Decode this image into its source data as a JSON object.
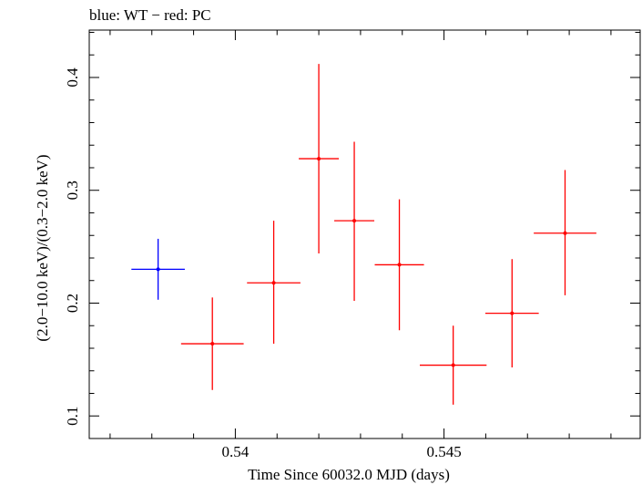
{
  "chart_data": {
    "type": "scatter",
    "title": "blue: WT − red: PC",
    "xlabel": "Time Since 60032.0 MJD (days)",
    "ylabel": "(2.0−10.0 keV)/(0.3−2.0 keV)",
    "xlim": [
      0.5365,
      0.5497
    ],
    "ylim": [
      0.08,
      0.442
    ],
    "x_ticks": [
      0.54,
      0.545
    ],
    "x_tick_labels": [
      "0.54",
      "0.545"
    ],
    "y_ticks": [
      0.1,
      0.2,
      0.3,
      0.4
    ],
    "y_tick_labels": [
      "0.1",
      "0.2",
      "0.3",
      "0.4"
    ],
    "grid": false,
    "series": [
      {
        "name": "WT",
        "color": "#0000ff",
        "points": [
          {
            "x": 0.53815,
            "y": 0.23,
            "xerr": 0.00064,
            "ylo": 0.203,
            "yhi": 0.257
          }
        ]
      },
      {
        "name": "PC",
        "color": "#ff0000",
        "points": [
          {
            "x": 0.53945,
            "y": 0.164,
            "xerr": 0.00075,
            "ylo": 0.123,
            "yhi": 0.205
          },
          {
            "x": 0.54092,
            "y": 0.218,
            "xerr": 0.00064,
            "ylo": 0.164,
            "yhi": 0.273
          },
          {
            "x": 0.542,
            "y": 0.328,
            "xerr": 0.00048,
            "ylo": 0.244,
            "yhi": 0.412
          },
          {
            "x": 0.54285,
            "y": 0.273,
            "xerr": 0.00048,
            "ylo": 0.202,
            "yhi": 0.343
          },
          {
            "x": 0.54393,
            "y": 0.234,
            "xerr": 0.00059,
            "ylo": 0.176,
            "yhi": 0.292
          },
          {
            "x": 0.54522,
            "y": 0.145,
            "xerr": 0.0008,
            "ylo": 0.11,
            "yhi": 0.18
          },
          {
            "x": 0.54663,
            "y": 0.191,
            "xerr": 0.00064,
            "ylo": 0.143,
            "yhi": 0.239
          },
          {
            "x": 0.5479,
            "y": 0.262,
            "xerr": 0.00075,
            "ylo": 0.207,
            "yhi": 0.318
          }
        ]
      }
    ]
  }
}
